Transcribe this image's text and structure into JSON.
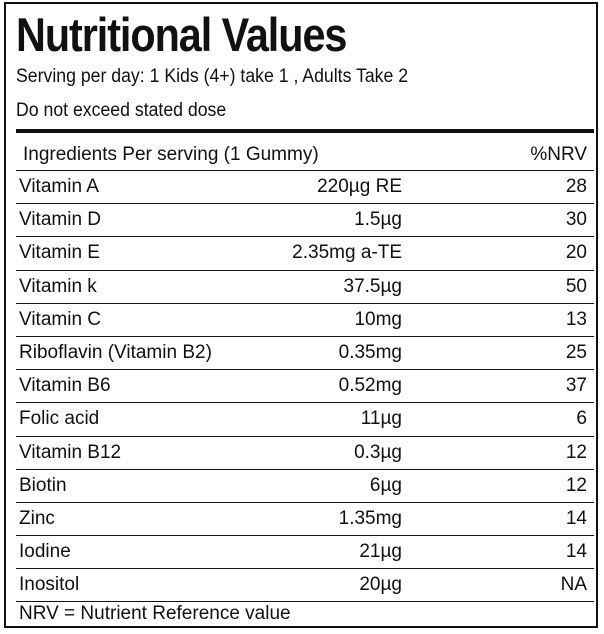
{
  "title": "Nutritional Values",
  "serving_line": "Serving per day: 1 Kids (4+) take 1 , Adults Take 2",
  "dose_line": "Do not exceed stated dose",
  "table": {
    "header_ingredients": "Ingredients Per serving (1 Gummy)",
    "header_nrv": "%NRV",
    "rows": [
      {
        "name": "Vitamin A",
        "amount": "220µg RE",
        "nrv": "28"
      },
      {
        "name": "Vitamin D",
        "amount": "1.5µg",
        "nrv": "30"
      },
      {
        "name": "Vitamin E",
        "amount": "2.35mg a-TE",
        "nrv": "20"
      },
      {
        "name": "Vitamin k",
        "amount": "37.5µg",
        "nrv": "50"
      },
      {
        "name": "Vitamin C",
        "amount": "10mg",
        "nrv": "13"
      },
      {
        "name": "Riboflavin (Vitamin B2)",
        "amount": "0.35mg",
        "nrv": "25"
      },
      {
        "name": "Vitamin B6",
        "amount": "0.52mg",
        "nrv": "37"
      },
      {
        "name": "Folic acid",
        "amount": "11µg",
        "nrv": "6"
      },
      {
        "name": "Vitamin B12",
        "amount": "0.3µg",
        "nrv": "12"
      },
      {
        "name": "Biotin",
        "amount": "6µg",
        "nrv": "12"
      },
      {
        "name": "Zinc",
        "amount": "1.35mg",
        "nrv": "14"
      },
      {
        "name": "Iodine",
        "amount": "21µg",
        "nrv": "14"
      },
      {
        "name": "Inositol",
        "amount": "20µg",
        "nrv": "NA"
      }
    ]
  },
  "footer_note": "NRV = Nutrient Reference value"
}
